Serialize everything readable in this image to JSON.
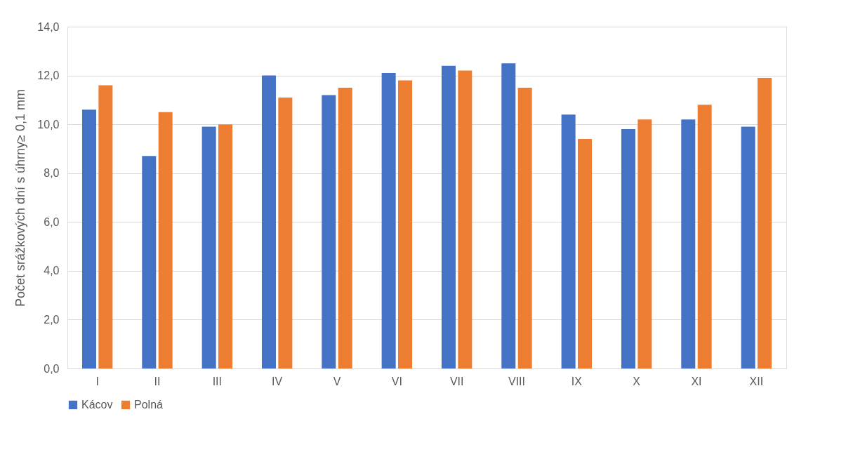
{
  "chart_data": {
    "type": "bar",
    "ylabel": "Počet srážkových dní s úhrny≥ 0,1 mm",
    "categories": [
      "I",
      "II",
      "III",
      "IV",
      "V",
      "VI",
      "VII",
      "VIII",
      "IX",
      "X",
      "XI",
      "XII"
    ],
    "series": [
      {
        "name": "Kácov",
        "color": "#4472c4",
        "values": [
          10.6,
          8.7,
          9.9,
          12.0,
          11.2,
          12.1,
          12.4,
          12.5,
          10.4,
          9.8,
          10.2,
          9.9
        ]
      },
      {
        "name": "Polná",
        "color": "#ed7d31",
        "values": [
          11.6,
          10.5,
          10.0,
          11.1,
          11.5,
          11.8,
          12.2,
          11.5,
          9.4,
          10.2,
          10.8,
          11.9
        ]
      }
    ],
    "ylim": [
      0,
      14
    ],
    "yticks": [
      {
        "value": 0,
        "label": "0,0"
      },
      {
        "value": 2,
        "label": "2,0"
      },
      {
        "value": 4,
        "label": "4,0"
      },
      {
        "value": 6,
        "label": "6,0"
      },
      {
        "value": 8,
        "label": "8,0"
      },
      {
        "value": 10,
        "label": "10,0"
      },
      {
        "value": 12,
        "label": "12,0"
      },
      {
        "value": 14,
        "label": "14,0"
      }
    ],
    "grid": "y",
    "legend": "bottom"
  }
}
